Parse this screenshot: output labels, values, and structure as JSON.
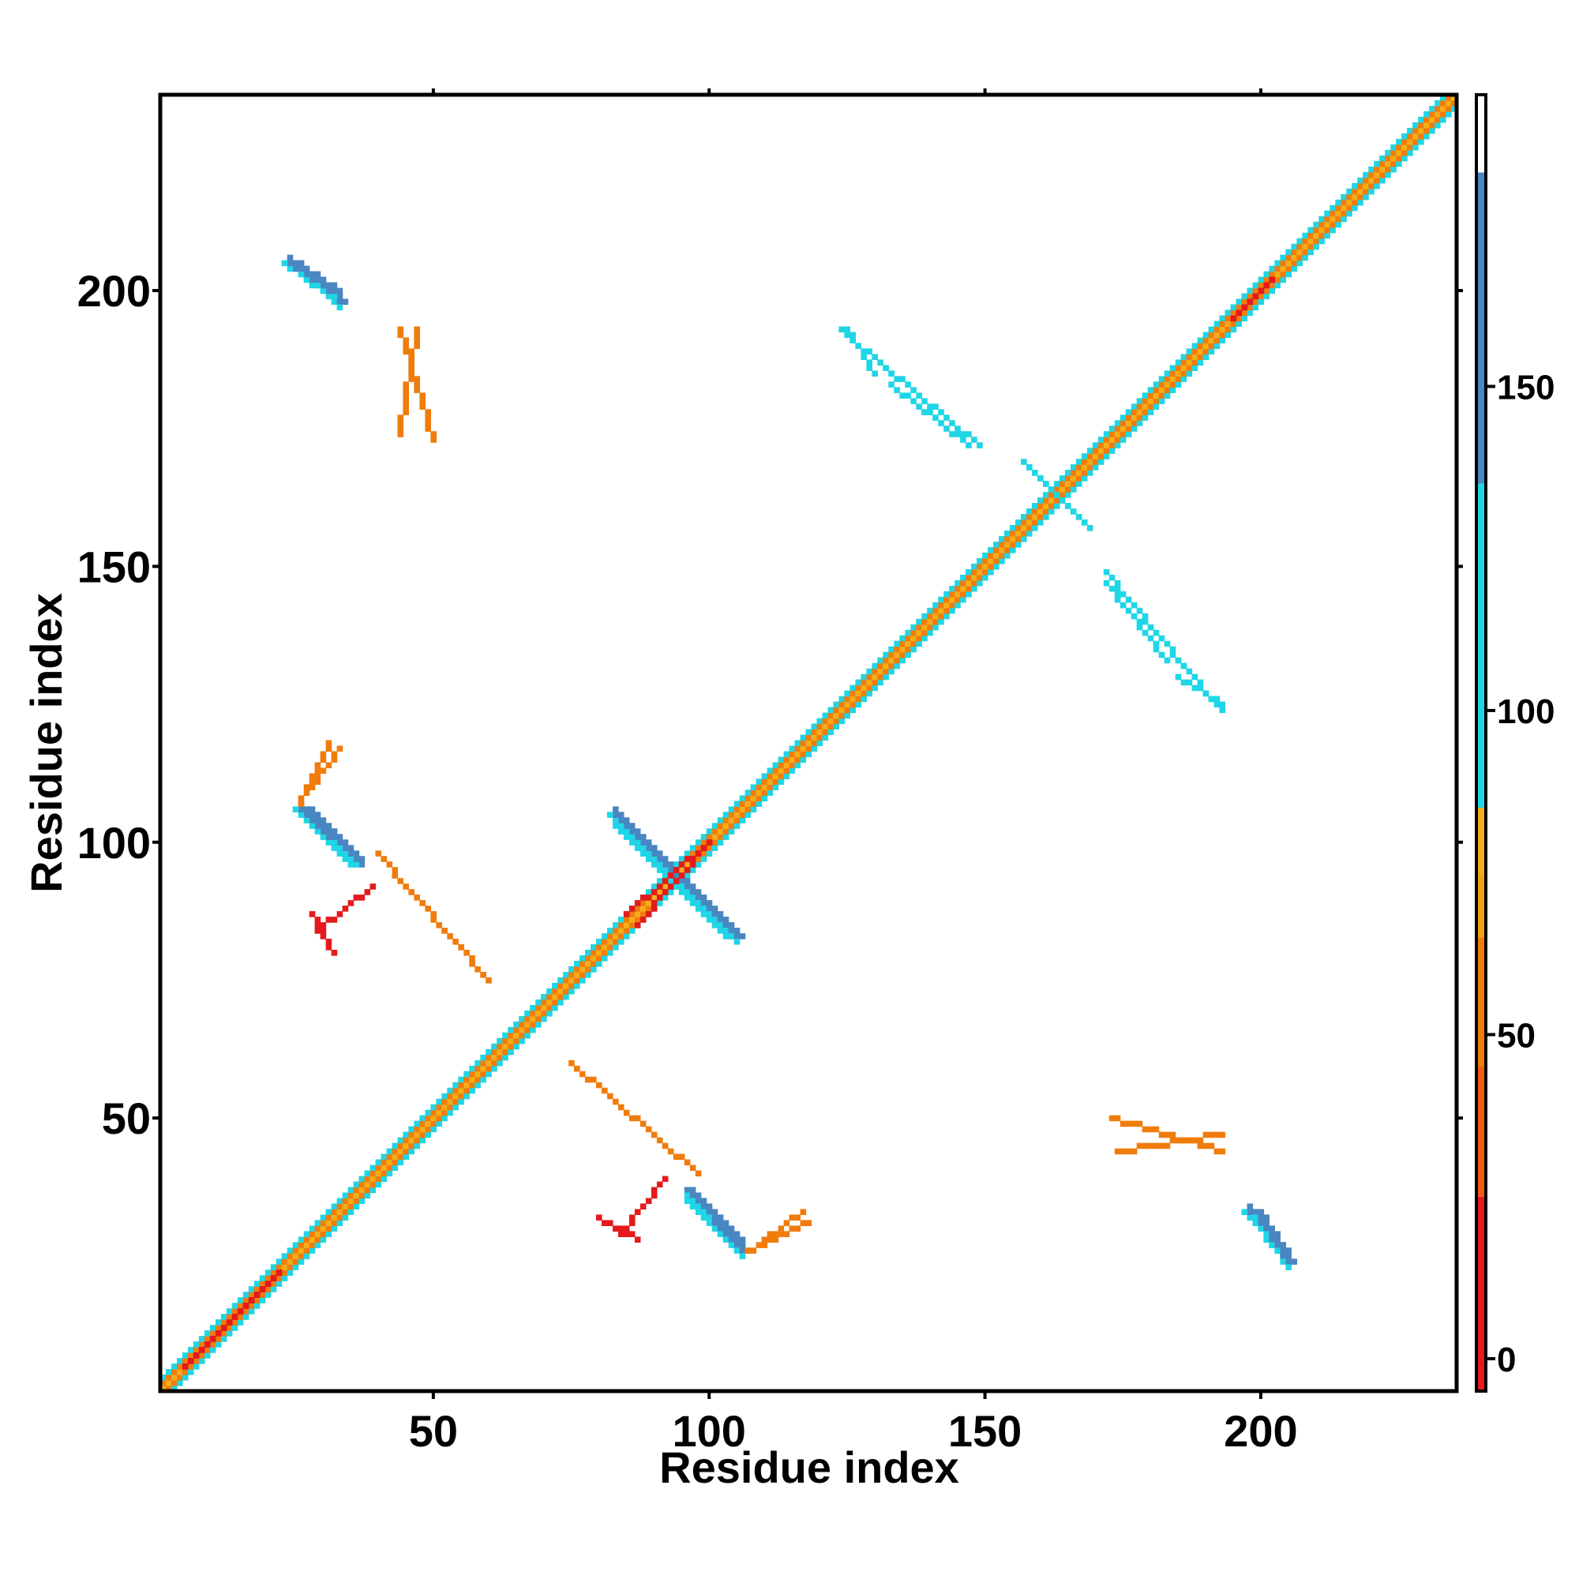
{
  "chart_data": {
    "type": "heatmap",
    "xlabel": "Residue index",
    "ylabel": "Residue index",
    "xlim": [
      1,
      235
    ],
    "ylim": [
      1,
      235
    ],
    "x_ticks": [
      50,
      100,
      150,
      200
    ],
    "y_ticks": [
      50,
      100,
      150,
      200
    ],
    "x_tick_labels": [
      "50",
      "100",
      "150",
      "200"
    ],
    "y_tick_labels": [
      "50",
      "100",
      "150",
      "200"
    ],
    "grid": false,
    "colorbar": {
      "range": [
        -5,
        195
      ],
      "ticks": [
        0,
        50,
        100,
        150
      ],
      "tick_labels": [
        "0",
        "50",
        "100",
        "150"
      ],
      "bands": [
        {
          "from": -5,
          "to": 25,
          "color": "#e41a1c"
        },
        {
          "from": 25,
          "to": 45,
          "color": "#f35a14"
        },
        {
          "from": 45,
          "to": 65,
          "color": "#f07c0c"
        },
        {
          "from": 65,
          "to": 75,
          "color": "#f2a30f"
        },
        {
          "from": 75,
          "to": 85,
          "color": "#f4ad18"
        },
        {
          "from": 85,
          "to": 135,
          "color": "#1fd6e6"
        },
        {
          "from": 135,
          "to": 183,
          "color": "#4a86c2"
        },
        {
          "from": 183,
          "to": 195,
          "color": "#ffffff"
        }
      ]
    },
    "diagonal": {
      "from": 1,
      "to": 235
    },
    "features": [
      {
        "x": [
          25,
          33
        ],
        "y": [
          205,
          198
        ],
        "kind": "blue"
      },
      {
        "x": [
          27,
          35
        ],
        "y": [
          106,
          97
        ],
        "kind": "blue"
      },
      {
        "x": [
          83,
          105
        ],
        "y": [
          104,
          83
        ],
        "kind": "blue"
      },
      {
        "x": [
          96,
          106
        ],
        "y": [
          37,
          26
        ],
        "kind": "blue"
      },
      {
        "x": [
          199,
          205
        ],
        "y": [
          33,
          24
        ],
        "kind": "blue"
      },
      {
        "x": [
          87,
          100
        ],
        "y": [
          85,
          100
        ],
        "kind": "red"
      },
      {
        "x": [
          5,
          22
        ],
        "y": [
          5,
          22
        ],
        "kind": "red"
      },
      {
        "x": [
          195,
          202
        ],
        "y": [
          195,
          202
        ],
        "kind": "red"
      },
      {
        "x": [
          124,
          133
        ],
        "y": [
          193,
          185
        ],
        "kind": "cyan"
      },
      {
        "x": [
          133,
          147
        ],
        "y": [
          183,
          172
        ],
        "kind": "cyan"
      },
      {
        "x": [
          172,
          186
        ],
        "y": [
          149,
          132
        ],
        "kind": "cyan"
      },
      {
        "x": [
          185,
          193
        ],
        "y": [
          130,
          125
        ],
        "kind": "cyan"
      },
      {
        "x": [
          157,
          168
        ],
        "y": [
          169,
          158
        ],
        "kind": "cyan"
      },
      {
        "x": [
          75,
          98
        ],
        "y": [
          60,
          40
        ],
        "kind": "orange"
      },
      {
        "x": [
          174,
          193
        ],
        "y": [
          44,
          47
        ],
        "kind": "orange"
      },
      {
        "x": [
          44,
          50
        ],
        "y": [
          193,
          173
        ],
        "kind": "orange"
      },
      {
        "x": [
          84,
          92
        ],
        "y": [
          29,
          39
        ],
        "kind": "red"
      },
      {
        "x": [
          107,
          118
        ],
        "y": [
          26,
          31
        ],
        "kind": "orange"
      },
      {
        "x": [
          28,
          32
        ],
        "y": [
          87,
          80
        ],
        "kind": "red"
      },
      {
        "x": [
          28,
          33
        ],
        "y": [
          110,
          117
        ],
        "kind": "orange"
      }
    ]
  }
}
